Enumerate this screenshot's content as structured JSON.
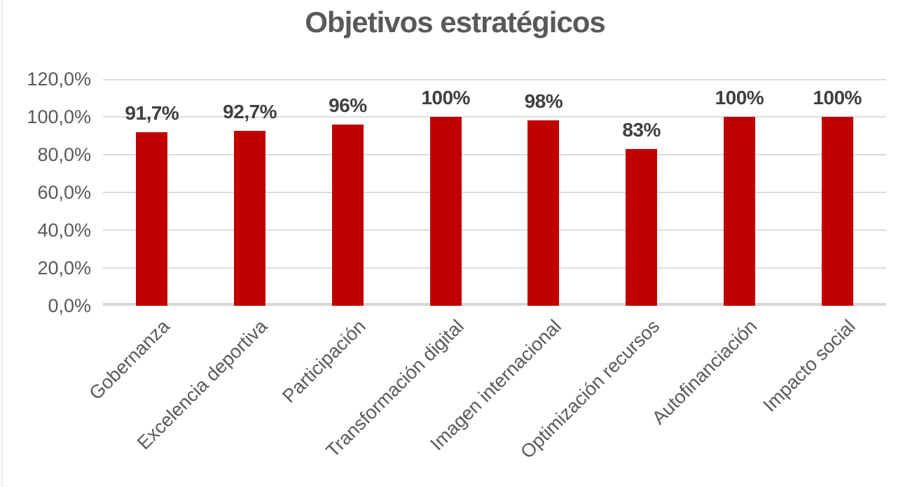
{
  "chart_data": {
    "type": "bar",
    "title": "Objetivos estratégicos",
    "categories": [
      "Gobernanza",
      "Excelencia deportiva",
      "Participación",
      "Transformación digital",
      "Imagen internacional",
      "Optimización recursos",
      "Autofinanciación",
      "Impacto social"
    ],
    "values": [
      91.7,
      92.7,
      96,
      100,
      98,
      83,
      100,
      100
    ],
    "value_labels": [
      "91,7%",
      "92,7%",
      "96%",
      "100%",
      "98%",
      "83%",
      "100%",
      "100%"
    ],
    "y_tick_values": [
      0,
      20,
      40,
      60,
      80,
      100,
      120
    ],
    "y_tick_labels": [
      "0,0%",
      "20,0%",
      "40,0%",
      "60,0%",
      "80,0%",
      "100,0%",
      "120,0%"
    ],
    "ylim": [
      0,
      120
    ],
    "xlabel": "",
    "ylabel": "",
    "grid": true,
    "legend": false,
    "x_label_rotation_deg": 45,
    "colors": {
      "bar": "#C00000",
      "gridline": "#DCDCDC",
      "baseline": "#D6D6D6",
      "axis_text": "#595959",
      "data_label": "#404040",
      "title_text": "#595959",
      "background": "#FFFFFF"
    }
  }
}
